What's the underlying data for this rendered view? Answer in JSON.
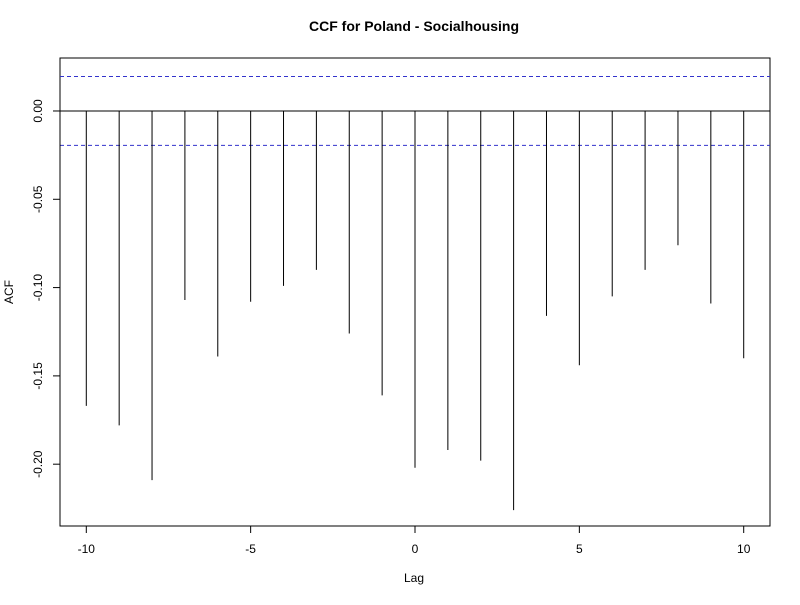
{
  "chart_data": {
    "type": "bar",
    "title": "CCF for Poland - Socialhousing",
    "xlabel": "Lag",
    "ylabel": "ACF",
    "x": [
      -10,
      -9,
      -8,
      -7,
      -6,
      -5,
      -4,
      -3,
      -2,
      -1,
      0,
      1,
      2,
      3,
      4,
      5,
      6,
      7,
      8,
      9,
      10
    ],
    "values": [
      -0.167,
      -0.178,
      -0.209,
      -0.107,
      -0.139,
      -0.108,
      -0.099,
      -0.09,
      -0.126,
      -0.161,
      -0.202,
      -0.192,
      -0.198,
      -0.226,
      -0.116,
      -0.144,
      -0.105,
      -0.09,
      -0.076,
      -0.109,
      -0.14
    ],
    "xlim": [
      -10.8,
      10.8
    ],
    "ylim": [
      -0.235,
      0.03
    ],
    "xticks": [
      -10,
      -5,
      0,
      5,
      10
    ],
    "xtick_labels": [
      "-10",
      "-5",
      "0",
      "5",
      "10"
    ],
    "yticks": [
      -0.2,
      -0.15,
      -0.1,
      -0.05,
      0
    ],
    "ytick_labels": [
      "-0.20",
      "-0.15",
      "-0.10",
      "-0.05",
      "0.00"
    ],
    "confidence_band": [
      -0.0195,
      0.0195
    ],
    "grid": false,
    "colors": {
      "bars": "#000000",
      "confidence": "#3333cc",
      "zero_line": "#000000",
      "frame": "#000000"
    }
  }
}
